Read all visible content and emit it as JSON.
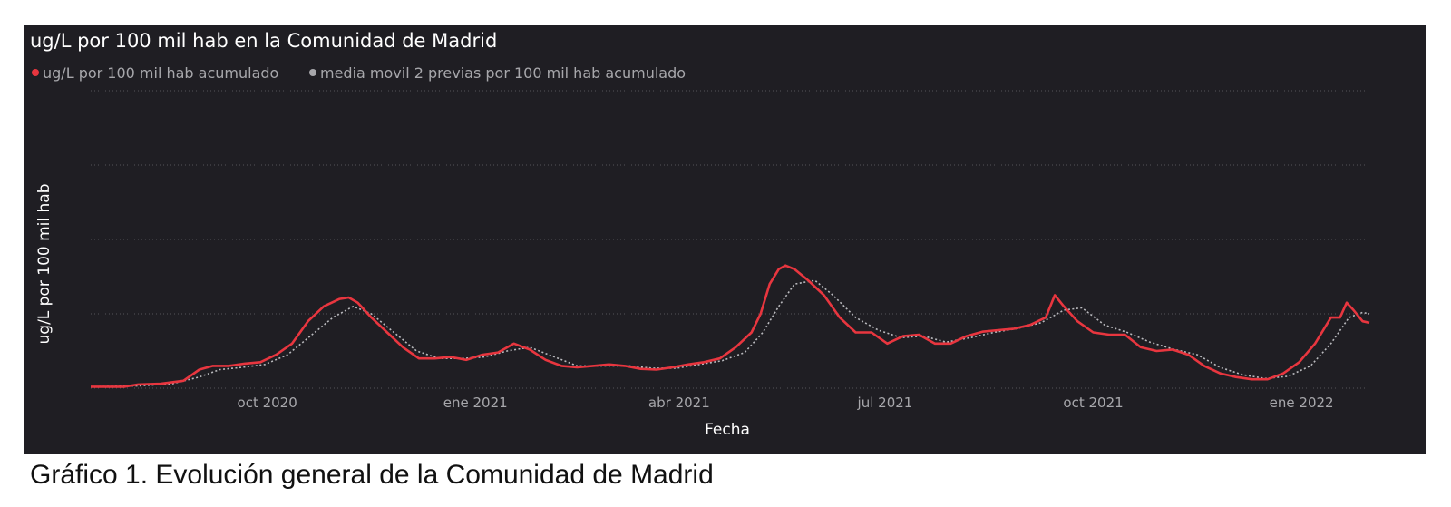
{
  "caption": "Gráfico 1. Evolución general de la Comunidad de Madrid",
  "chart_data": {
    "type": "line",
    "title": "ug/L por 100 mil hab en la Comunidad de Madrid",
    "xlabel": "Fecha",
    "ylabel": "ug/L por 100 mil hab",
    "x_ticks": [
      {
        "label": "oct 2020",
        "date": "2020-10-01"
      },
      {
        "label": "ene 2021",
        "date": "2021-01-01"
      },
      {
        "label": "abr 2021",
        "date": "2021-04-01"
      },
      {
        "label": "jul 2021",
        "date": "2021-07-01"
      },
      {
        "label": "oct 2021",
        "date": "2021-10-01"
      },
      {
        "label": "ene 2022",
        "date": "2022-01-01"
      }
    ],
    "xlim": [
      "2020-07-15",
      "2022-01-31"
    ],
    "ylim": [
      0,
      4
    ],
    "y_tick_labels": "none",
    "grid": "horizontal dotted",
    "legend": "top-left",
    "series": [
      {
        "name": "ug/L por 100 mil hab acumulado",
        "color": "#e8363f",
        "style": "solid",
        "points": [
          [
            "2020-07-15",
            0.02
          ],
          [
            "2020-07-30",
            0.02
          ],
          [
            "2020-08-05",
            0.05
          ],
          [
            "2020-08-15",
            0.06
          ],
          [
            "2020-08-25",
            0.1
          ],
          [
            "2020-09-01",
            0.25
          ],
          [
            "2020-09-07",
            0.3
          ],
          [
            "2020-09-14",
            0.3
          ],
          [
            "2020-09-21",
            0.33
          ],
          [
            "2020-09-28",
            0.35
          ],
          [
            "2020-10-05",
            0.45
          ],
          [
            "2020-10-12",
            0.6
          ],
          [
            "2020-10-19",
            0.9
          ],
          [
            "2020-10-26",
            1.1
          ],
          [
            "2020-11-02",
            1.2
          ],
          [
            "2020-11-06",
            1.22
          ],
          [
            "2020-11-10",
            1.15
          ],
          [
            "2020-11-16",
            0.95
          ],
          [
            "2020-11-23",
            0.75
          ],
          [
            "2020-11-30",
            0.55
          ],
          [
            "2020-12-07",
            0.4
          ],
          [
            "2020-12-14",
            0.4
          ],
          [
            "2020-12-21",
            0.42
          ],
          [
            "2020-12-28",
            0.38
          ],
          [
            "2021-01-04",
            0.45
          ],
          [
            "2021-01-11",
            0.48
          ],
          [
            "2021-01-18",
            0.6
          ],
          [
            "2021-01-25",
            0.52
          ],
          [
            "2021-02-01",
            0.38
          ],
          [
            "2021-02-08",
            0.3
          ],
          [
            "2021-02-15",
            0.28
          ],
          [
            "2021-02-22",
            0.3
          ],
          [
            "2021-03-01",
            0.32
          ],
          [
            "2021-03-08",
            0.3
          ],
          [
            "2021-03-15",
            0.26
          ],
          [
            "2021-03-22",
            0.25
          ],
          [
            "2021-03-29",
            0.28
          ],
          [
            "2021-04-05",
            0.32
          ],
          [
            "2021-04-12",
            0.35
          ],
          [
            "2021-04-19",
            0.4
          ],
          [
            "2021-04-26",
            0.55
          ],
          [
            "2021-05-03",
            0.75
          ],
          [
            "2021-05-07",
            1.0
          ],
          [
            "2021-05-11",
            1.4
          ],
          [
            "2021-05-15",
            1.6
          ],
          [
            "2021-05-18",
            1.65
          ],
          [
            "2021-05-22",
            1.6
          ],
          [
            "2021-05-28",
            1.45
          ],
          [
            "2021-06-04",
            1.25
          ],
          [
            "2021-06-11",
            0.95
          ],
          [
            "2021-06-18",
            0.75
          ],
          [
            "2021-06-25",
            0.75
          ],
          [
            "2021-07-02",
            0.6
          ],
          [
            "2021-07-09",
            0.7
          ],
          [
            "2021-07-16",
            0.72
          ],
          [
            "2021-07-23",
            0.6
          ],
          [
            "2021-07-30",
            0.6
          ],
          [
            "2021-08-06",
            0.7
          ],
          [
            "2021-08-13",
            0.76
          ],
          [
            "2021-08-20",
            0.78
          ],
          [
            "2021-08-27",
            0.8
          ],
          [
            "2021-09-03",
            0.85
          ],
          [
            "2021-09-10",
            0.95
          ],
          [
            "2021-09-14",
            1.25
          ],
          [
            "2021-09-18",
            1.1
          ],
          [
            "2021-09-24",
            0.9
          ],
          [
            "2021-10-01",
            0.75
          ],
          [
            "2021-10-08",
            0.72
          ],
          [
            "2021-10-15",
            0.72
          ],
          [
            "2021-10-22",
            0.55
          ],
          [
            "2021-10-29",
            0.5
          ],
          [
            "2021-11-05",
            0.52
          ],
          [
            "2021-11-12",
            0.45
          ],
          [
            "2021-11-19",
            0.3
          ],
          [
            "2021-11-26",
            0.2
          ],
          [
            "2021-12-03",
            0.15
          ],
          [
            "2021-12-10",
            0.12
          ],
          [
            "2021-12-17",
            0.12
          ],
          [
            "2021-12-24",
            0.2
          ],
          [
            "2021-12-31",
            0.35
          ],
          [
            "2022-01-07",
            0.6
          ],
          [
            "2022-01-14",
            0.95
          ],
          [
            "2022-01-18",
            0.95
          ],
          [
            "2022-01-21",
            1.15
          ],
          [
            "2022-01-24",
            1.05
          ],
          [
            "2022-01-28",
            0.9
          ],
          [
            "2022-01-31",
            0.88
          ]
        ]
      },
      {
        "name": "media movil 2 previas por 100 mil hab acumulado",
        "color": "#b9b9bd",
        "style": "dotted",
        "points": [
          [
            "2020-07-15",
            0.02
          ],
          [
            "2020-08-05",
            0.03
          ],
          [
            "2020-08-20",
            0.06
          ],
          [
            "2020-09-01",
            0.15
          ],
          [
            "2020-09-10",
            0.25
          ],
          [
            "2020-09-20",
            0.28
          ],
          [
            "2020-09-30",
            0.32
          ],
          [
            "2020-10-10",
            0.45
          ],
          [
            "2020-10-20",
            0.7
          ],
          [
            "2020-10-30",
            0.95
          ],
          [
            "2020-11-08",
            1.1
          ],
          [
            "2020-11-16",
            1.0
          ],
          [
            "2020-11-26",
            0.75
          ],
          [
            "2020-12-06",
            0.5
          ],
          [
            "2020-12-16",
            0.4
          ],
          [
            "2020-12-26",
            0.4
          ],
          [
            "2021-01-05",
            0.42
          ],
          [
            "2021-01-15",
            0.5
          ],
          [
            "2021-01-25",
            0.55
          ],
          [
            "2021-02-05",
            0.42
          ],
          [
            "2021-02-15",
            0.3
          ],
          [
            "2021-02-28",
            0.3
          ],
          [
            "2021-03-10",
            0.3
          ],
          [
            "2021-03-20",
            0.27
          ],
          [
            "2021-03-31",
            0.27
          ],
          [
            "2021-04-10",
            0.32
          ],
          [
            "2021-04-20",
            0.37
          ],
          [
            "2021-04-30",
            0.48
          ],
          [
            "2021-05-08",
            0.75
          ],
          [
            "2021-05-15",
            1.1
          ],
          [
            "2021-05-22",
            1.4
          ],
          [
            "2021-05-31",
            1.45
          ],
          [
            "2021-06-08",
            1.25
          ],
          [
            "2021-06-18",
            0.95
          ],
          [
            "2021-06-28",
            0.78
          ],
          [
            "2021-07-08",
            0.68
          ],
          [
            "2021-07-18",
            0.7
          ],
          [
            "2021-07-28",
            0.62
          ],
          [
            "2021-08-08",
            0.68
          ],
          [
            "2021-08-18",
            0.75
          ],
          [
            "2021-08-28",
            0.8
          ],
          [
            "2021-09-08",
            0.88
          ],
          [
            "2021-09-18",
            1.05
          ],
          [
            "2021-09-26",
            1.08
          ],
          [
            "2021-10-06",
            0.85
          ],
          [
            "2021-10-16",
            0.75
          ],
          [
            "2021-10-26",
            0.62
          ],
          [
            "2021-11-06",
            0.52
          ],
          [
            "2021-11-16",
            0.45
          ],
          [
            "2021-11-26",
            0.28
          ],
          [
            "2021-12-06",
            0.18
          ],
          [
            "2021-12-16",
            0.13
          ],
          [
            "2021-12-26",
            0.16
          ],
          [
            "2022-01-05",
            0.3
          ],
          [
            "2022-01-14",
            0.6
          ],
          [
            "2022-01-22",
            0.95
          ],
          [
            "2022-01-28",
            1.02
          ],
          [
            "2022-01-31",
            1.0
          ]
        ]
      }
    ]
  }
}
